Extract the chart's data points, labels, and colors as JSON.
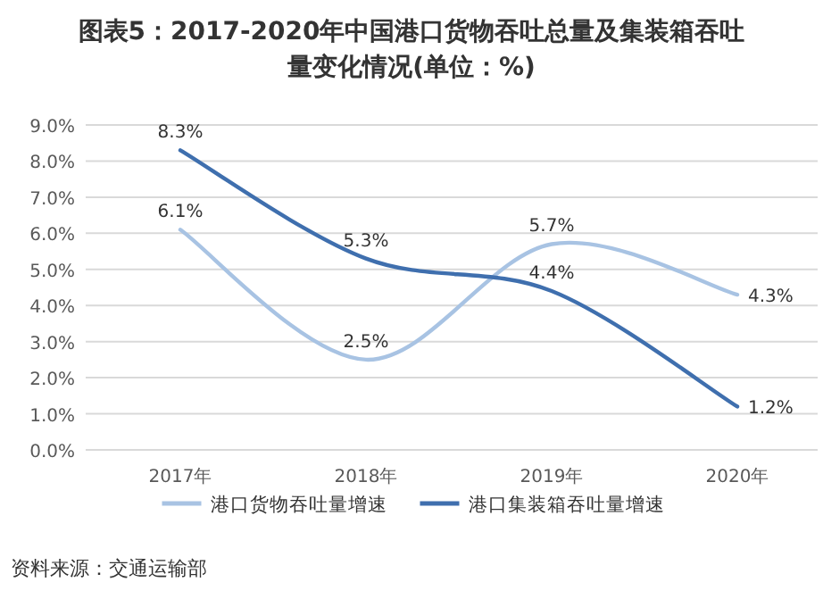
{
  "chart_data": {
    "type": "line",
    "title": "图表5：2017-2020年中国港口货物吞吐总量及集装箱吞吐量变化情况(单位：%)",
    "categories": [
      "2017年",
      "2018年",
      "2019年",
      "2020年"
    ],
    "series": [
      {
        "name": "港口货物吞吐量增速",
        "color": "#a8c3e3",
        "values": [
          6.1,
          2.5,
          5.7,
          4.3
        ],
        "value_labels": [
          "6.1%",
          "2.5%",
          "5.7%",
          "4.3%"
        ]
      },
      {
        "name": "港口集装箱吞吐量增速",
        "color": "#3f6fae",
        "values": [
          8.3,
          5.3,
          4.4,
          1.2
        ],
        "value_labels": [
          "8.3%",
          "5.3%",
          "4.4%",
          "1.2%"
        ]
      }
    ],
    "ylim": [
      0,
      9
    ],
    "yticks": [
      {
        "value": 0,
        "label": "0.0%"
      },
      {
        "value": 1,
        "label": "1.0%"
      },
      {
        "value": 2,
        "label": "2.0%"
      },
      {
        "value": 3,
        "label": "3.0%"
      },
      {
        "value": 4,
        "label": "4.0%"
      },
      {
        "value": 5,
        "label": "5.0%"
      },
      {
        "value": 6,
        "label": "6.0%"
      },
      {
        "value": 7,
        "label": "7.0%"
      },
      {
        "value": 8,
        "label": "8.0%"
      },
      {
        "value": 9,
        "label": "9.0%"
      }
    ],
    "grid": "y",
    "legend": "bottom",
    "marker": "none",
    "line_style": "solid",
    "annotations": [
      "资料来源：交通运输部"
    ]
  }
}
